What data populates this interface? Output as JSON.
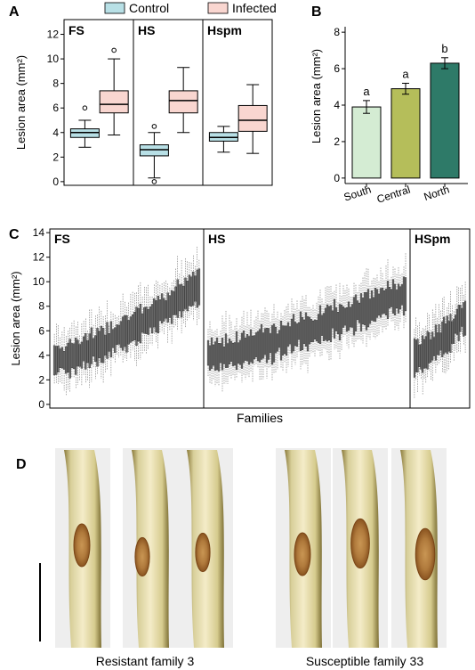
{
  "chart_data": [
    {
      "panel": "A",
      "type": "box",
      "ylabel": "Lesion area (mm²)",
      "ylim": [
        -0.3,
        13.2
      ],
      "yticks": [
        0,
        2,
        4,
        6,
        8,
        10,
        12
      ],
      "legend": [
        "Control",
        "Infected"
      ],
      "colors": {
        "Control": "#b8e0e6",
        "Infected": "#f9d6d0"
      },
      "groups": [
        {
          "label": "FS",
          "boxes": [
            {
              "series": "Control",
              "lw": 2.8,
              "q1": 3.6,
              "med": 4.0,
              "q3": 4.3,
              "uw": 5.0,
              "outliers": [
                6.0
              ]
            },
            {
              "series": "Infected",
              "lw": 3.8,
              "q1": 5.6,
              "med": 6.3,
              "q3": 7.4,
              "uw": 10.0,
              "outliers": [
                10.7
              ]
            }
          ]
        },
        {
          "label": "HS",
          "boxes": [
            {
              "series": "Control",
              "lw": 0.3,
              "q1": 2.1,
              "med": 2.6,
              "q3": 3.0,
              "uw": 4.0,
              "outliers": [
                4.5,
                0.0
              ]
            },
            {
              "series": "Infected",
              "lw": 4.0,
              "q1": 5.6,
              "med": 6.6,
              "q3": 7.4,
              "uw": 9.3,
              "outliers": []
            }
          ]
        },
        {
          "label": "Hspm",
          "boxes": [
            {
              "series": "Control",
              "lw": 2.4,
              "q1": 3.3,
              "med": 3.6,
              "q3": 4.0,
              "uw": 4.5,
              "outliers": []
            },
            {
              "series": "Infected",
              "lw": 2.3,
              "q1": 4.1,
              "med": 5.0,
              "q3": 6.2,
              "uw": 7.9,
              "outliers": []
            }
          ]
        }
      ]
    },
    {
      "panel": "B",
      "type": "bar",
      "ylabel": "Lesion area (mm²)",
      "ylim": [
        -0.3,
        8.3
      ],
      "yticks": [
        0,
        2,
        4,
        6,
        8
      ],
      "categories": [
        "South",
        "Central",
        "North"
      ],
      "values": [
        3.9,
        4.9,
        6.3
      ],
      "errors": [
        0.35,
        0.3,
        0.3
      ],
      "letters": [
        "a",
        "a",
        "b"
      ],
      "colors": [
        "#d4ecd3",
        "#b5be5a",
        "#2e7a68"
      ]
    },
    {
      "panel": "C",
      "type": "box",
      "ylabel": "Lesion area (mm²)",
      "xlabel": "Families",
      "ylim": [
        -0.3,
        14.3
      ],
      "yticks": [
        0,
        2,
        4,
        6,
        8,
        10,
        12,
        14
      ],
      "groups": [
        {
          "label": "FS",
          "n": 75,
          "med_start": 3.6,
          "med_end": 9.6
        },
        {
          "label": "HS",
          "n": 112,
          "med_start": 4.0,
          "med_end": 9.0
        },
        {
          "label": "HSpm",
          "n": 32,
          "med_start": 3.8,
          "med_end": 7.2
        }
      ]
    }
  ],
  "photo_panel": {
    "label": "D",
    "groups": [
      {
        "caption": "Resistant family 3"
      },
      {
        "caption": "Susceptible family 33"
      }
    ]
  }
}
